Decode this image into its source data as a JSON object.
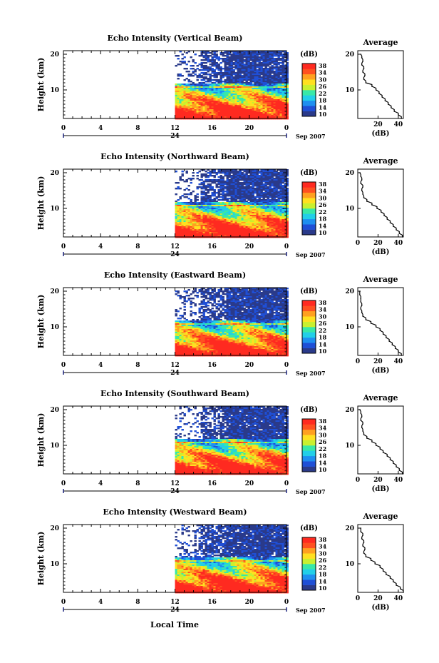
{
  "figure": {
    "x_axis_title": "Local Time",
    "date_label": "Sep 2007",
    "day_label": "24"
  },
  "panels": [
    {
      "title": "Echo Intensity (Vertical Beam)",
      "avg_x_ticks": [
        "20",
        "40"
      ]
    },
    {
      "title": "Echo Intensity (Northward Beam)",
      "avg_x_ticks": [
        "0",
        "20",
        "40"
      ]
    },
    {
      "title": "Echo Intensity (Eastward Beam)",
      "avg_x_ticks": [
        "0",
        "20",
        "40"
      ]
    },
    {
      "title": "Echo Intensity (Southward Beam)",
      "avg_x_ticks": [
        "0",
        "20",
        "40"
      ]
    },
    {
      "title": "Echo Intensity (Westward Beam)",
      "avg_x_ticks": [
        "0",
        "20",
        "40"
      ]
    }
  ],
  "colorbar": {
    "label": "(dB)",
    "ticks": [
      "38",
      "34",
      "30",
      "26",
      "22",
      "18",
      "14",
      "10"
    ],
    "range_db": [
      10,
      40
    ],
    "colors": [
      "#2a3a8a",
      "#1f4fd6",
      "#1f8ff0",
      "#22cfe8",
      "#38e8a8",
      "#c8f030",
      "#ffe020",
      "#ffa020",
      "#ff5020",
      "#ff2a20"
    ]
  },
  "average_panel": {
    "title": "Average",
    "xlabel": "(dB)",
    "y_ticks": [
      "20",
      "10"
    ]
  },
  "chart_data": [
    {
      "type": "heatmap",
      "title": "Echo Intensity (Vertical Beam)",
      "xlabel": "",
      "ylabel": "Height (km)",
      "x_ticks": [
        "0",
        "4",
        "8",
        "12",
        "16",
        "20",
        "0"
      ],
      "y_ticks": [
        "20",
        "10"
      ],
      "xlim_hours": [
        0,
        24
      ],
      "ylim_km": [
        2,
        21
      ],
      "data_start_hour": 12,
      "colorbar_db": [
        10,
        40
      ],
      "average_profile": {
        "xlabel": "(dB)",
        "xlim": [
          0,
          45
        ],
        "height_km": [
          2,
          3,
          4,
          5,
          6,
          7,
          8,
          9,
          10,
          11,
          12,
          13,
          14,
          15,
          16,
          17,
          18,
          19,
          20
        ],
        "db": [
          43,
          40,
          36,
          33,
          30,
          27,
          24,
          21,
          18,
          14,
          8,
          6,
          7,
          5,
          6,
          4,
          5,
          4,
          3
        ]
      }
    },
    {
      "type": "heatmap",
      "title": "Echo Intensity (Northward Beam)",
      "xlabel": "",
      "ylabel": "Height (km)",
      "x_ticks": [
        "0",
        "4",
        "8",
        "12",
        "16",
        "20",
        "0"
      ],
      "y_ticks": [
        "20",
        "10"
      ],
      "xlim_hours": [
        0,
        24
      ],
      "ylim_km": [
        2,
        21
      ],
      "data_start_hour": 12,
      "colorbar_db": [
        10,
        40
      ],
      "average_profile": {
        "xlabel": "(dB)",
        "xlim": [
          0,
          45
        ],
        "height_km": [
          2,
          3,
          4,
          5,
          6,
          7,
          8,
          9,
          10,
          11,
          12,
          13,
          14,
          15,
          16,
          17,
          18,
          19,
          20
        ],
        "db": [
          44,
          41,
          38,
          35,
          32,
          29,
          26,
          23,
          19,
          14,
          9,
          6,
          5,
          4,
          5,
          3,
          4,
          3,
          2
        ]
      }
    },
    {
      "type": "heatmap",
      "title": "Echo Intensity (Eastward Beam)",
      "xlabel": "",
      "ylabel": "Height (km)",
      "x_ticks": [
        "0",
        "4",
        "8",
        "12",
        "16",
        "20",
        "0"
      ],
      "y_ticks": [
        "20",
        "10"
      ],
      "xlim_hours": [
        0,
        24
      ],
      "ylim_km": [
        2,
        21
      ],
      "data_start_hour": 12,
      "colorbar_db": [
        10,
        40
      ],
      "average_profile": {
        "xlabel": "(dB)",
        "xlim": [
          0,
          45
        ],
        "height_km": [
          2,
          3,
          4,
          5,
          6,
          7,
          8,
          9,
          10,
          11,
          12,
          13,
          14,
          15,
          16,
          17,
          18,
          19,
          20
        ],
        "db": [
          43,
          40,
          37,
          34,
          31,
          28,
          25,
          22,
          18,
          13,
          8,
          5,
          4,
          3,
          4,
          3,
          3,
          2,
          2
        ]
      }
    },
    {
      "type": "heatmap",
      "title": "Echo Intensity (Southward Beam)",
      "xlabel": "",
      "ylabel": "Height (km)",
      "x_ticks": [
        "0",
        "4",
        "8",
        "12",
        "16",
        "20",
        "0"
      ],
      "y_ticks": [
        "20",
        "10"
      ],
      "xlim_hours": [
        0,
        24
      ],
      "ylim_km": [
        2,
        21
      ],
      "data_start_hour": 12,
      "colorbar_db": [
        10,
        40
      ],
      "average_profile": {
        "xlabel": "(dB)",
        "xlim": [
          0,
          45
        ],
        "height_km": [
          2,
          3,
          4,
          5,
          6,
          7,
          8,
          9,
          10,
          11,
          12,
          13,
          14,
          15,
          16,
          17,
          18,
          19,
          20
        ],
        "db": [
          44,
          41,
          38,
          35,
          32,
          29,
          25,
          22,
          18,
          14,
          9,
          6,
          5,
          4,
          5,
          3,
          4,
          3,
          2
        ]
      }
    },
    {
      "type": "heatmap",
      "title": "Echo Intensity (Westward Beam)",
      "xlabel": "Local Time",
      "ylabel": "Height (km)",
      "x_ticks": [
        "0",
        "4",
        "8",
        "12",
        "16",
        "20",
        "0"
      ],
      "y_ticks": [
        "20",
        "10"
      ],
      "xlim_hours": [
        0,
        24
      ],
      "ylim_km": [
        2,
        21
      ],
      "data_start_hour": 12,
      "colorbar_db": [
        10,
        40
      ],
      "average_profile": {
        "xlabel": "(dB)",
        "xlim": [
          0,
          45
        ],
        "height_km": [
          2,
          3,
          4,
          5,
          6,
          7,
          8,
          9,
          10,
          11,
          12,
          13,
          14,
          15,
          16,
          17,
          18,
          19,
          20
        ],
        "db": [
          45,
          42,
          38,
          35,
          32,
          28,
          25,
          22,
          17,
          13,
          8,
          6,
          7,
          5,
          6,
          4,
          5,
          3,
          3
        ]
      }
    }
  ]
}
